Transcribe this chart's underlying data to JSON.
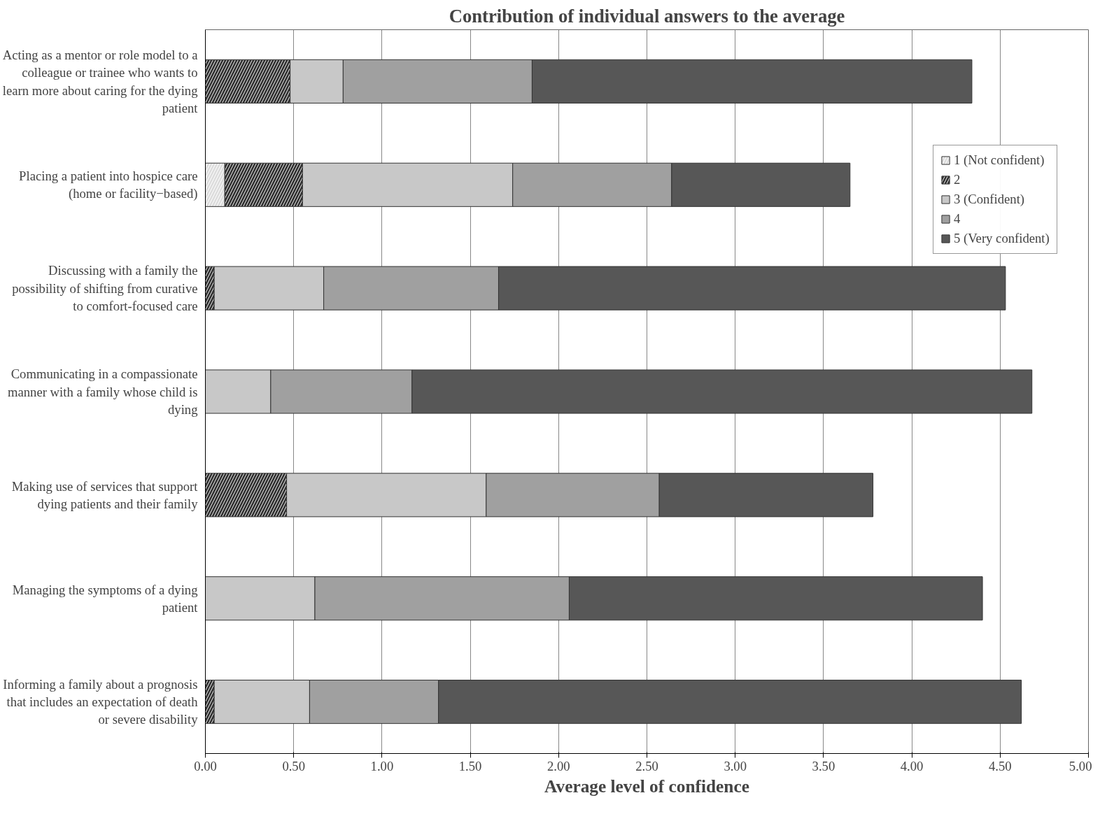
{
  "chart_data": {
    "type": "bar",
    "orientation": "horizontal",
    "stacked": true,
    "title": "Contribution of individual answers to the average",
    "xlabel": "Average level of confidence",
    "categories": [
      "Acting as a mentor or role model to a colleague or trainee who wants to learn more about caring for the dying patient",
      "Placing a patient into hospice care (home or facility−based)",
      "Discussing with a family the possibility of shifting from curative to comfort-focused care",
      "Communicating in a compassionate manner with a family whose child is dying",
      "Making use of services that support dying patients and their family",
      "Managing the symptoms of a dying patient",
      "Informing a family about a prognosis that includes an expectation of death or severe disability"
    ],
    "series": [
      {
        "name": "1 (Not confident)",
        "color": "#eeeeee",
        "values": [
          0,
          0.11,
          0,
          0,
          0,
          0,
          0
        ]
      },
      {
        "name": "2",
        "color": "#333333",
        "values": [
          0.48,
          0.44,
          0.05,
          0,
          0.46,
          0,
          0.05
        ]
      },
      {
        "name": "3 (Confident)",
        "color": "#c8c8c8",
        "values": [
          0.3,
          1.19,
          0.62,
          0.37,
          1.13,
          0.62,
          0.54
        ]
      },
      {
        "name": "4",
        "color": "#a0a0a0",
        "values": [
          1.07,
          0.9,
          0.99,
          0.8,
          0.98,
          1.44,
          0.73
        ]
      },
      {
        "name": "5 (Very confident)",
        "color": "#575757",
        "values": [
          2.49,
          1.01,
          2.87,
          3.51,
          1.21,
          2.34,
          3.3
        ]
      }
    ],
    "xlim": [
      0,
      5
    ],
    "xticks": [
      {
        "value": 0,
        "label": "0.00"
      },
      {
        "value": 0.5,
        "label": "0.50"
      },
      {
        "value": 1,
        "label": "1.00"
      },
      {
        "value": 1.5,
        "label": "1.50"
      },
      {
        "value": 2,
        "label": "2.00"
      },
      {
        "value": 2.5,
        "label": "2.50"
      },
      {
        "value": 3,
        "label": "3.00"
      },
      {
        "value": 3.5,
        "label": "3.50"
      },
      {
        "value": 4,
        "label": "4.00"
      },
      {
        "value": 4.5,
        "label": "4.50"
      },
      {
        "value": 5,
        "label": "5.00"
      }
    ],
    "grid": "x",
    "legend": "top right"
  }
}
